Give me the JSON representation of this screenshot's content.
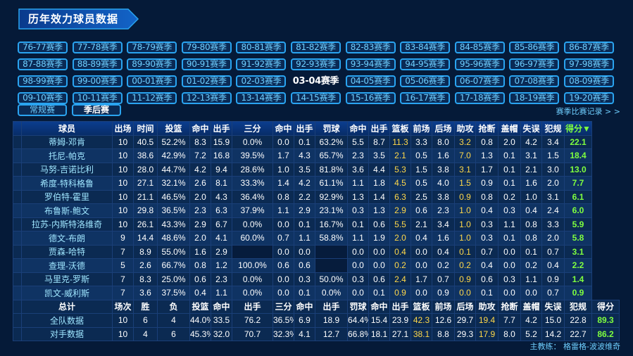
{
  "page_title": "历年效力球员数据",
  "seasons": [
    [
      "76-77赛季",
      "77-78赛季",
      "78-79赛季",
      "79-80赛季",
      "80-81赛季",
      "81-82赛季",
      "82-83赛季",
      "83-84赛季",
      "84-85赛季",
      "85-86赛季",
      "86-87赛季"
    ],
    [
      "87-88赛季",
      "88-89赛季",
      "89-90赛季",
      "90-91赛季",
      "91-92赛季",
      "92-93赛季",
      "93-94赛季",
      "94-95赛季",
      "95-96赛季",
      "96-97赛季",
      "97-98赛季"
    ],
    [
      "98-99赛季",
      "99-00赛季",
      "00-01赛季",
      "01-02赛季",
      "02-03赛季",
      "03-04赛季",
      "04-05赛季",
      "05-06赛季",
      "06-07赛季",
      "07-08赛季",
      "08-09赛季"
    ],
    [
      "09-10赛季",
      "10-11赛季",
      "11-12赛季",
      "12-13赛季",
      "13-14赛季",
      "14-15赛季",
      "15-16赛季",
      "16-17赛季",
      "17-18赛季",
      "18-19赛季",
      "19-20赛季"
    ]
  ],
  "active_season": "03-04赛季",
  "type_tabs": {
    "regular": "常规赛",
    "playoff": "季后赛"
  },
  "record_link": "赛季比赛记录 > >",
  "headers": [
    "球员",
    "出场",
    "时间",
    "投篮",
    "命中",
    "出手",
    "三分",
    "命中",
    "出手",
    "罚球",
    "命中",
    "出手",
    "篮板",
    "前场",
    "后场",
    "助攻",
    "抢断",
    "盖帽",
    "失误",
    "犯规",
    "得分▼"
  ],
  "players": [
    [
      "蒂姆-邓肯",
      "10",
      "40.5",
      "52.2%",
      "8.3",
      "15.9",
      "0.0%",
      "0.0",
      "0.1",
      "63.2%",
      "5.5",
      "8.7",
      "11.3",
      "3.3",
      "8.0",
      "3.2",
      "0.8",
      "2.0",
      "4.2",
      "3.4",
      "22.1"
    ],
    [
      "托尼-帕克",
      "10",
      "38.6",
      "42.9%",
      "7.2",
      "16.8",
      "39.5%",
      "1.7",
      "4.3",
      "65.7%",
      "2.3",
      "3.5",
      "2.1",
      "0.5",
      "1.6",
      "7.0",
      "1.3",
      "0.1",
      "3.1",
      "1.5",
      "18.4"
    ],
    [
      "马努-吉诺比利",
      "10",
      "28.0",
      "44.7%",
      "4.2",
      "9.4",
      "28.6%",
      "1.0",
      "3.5",
      "81.8%",
      "3.6",
      "4.4",
      "5.3",
      "1.5",
      "3.8",
      "3.1",
      "1.7",
      "0.1",
      "2.1",
      "3.0",
      "13.0"
    ],
    [
      "希度-特科格鲁",
      "10",
      "27.1",
      "32.1%",
      "2.6",
      "8.1",
      "33.3%",
      "1.4",
      "4.2",
      "61.1%",
      "1.1",
      "1.8",
      "4.5",
      "0.5",
      "4.0",
      "1.5",
      "0.9",
      "0.1",
      "1.6",
      "2.0",
      "7.7"
    ],
    [
      "罗伯特-霍里",
      "10",
      "21.1",
      "46.5%",
      "2.0",
      "4.3",
      "36.4%",
      "0.8",
      "2.2",
      "92.9%",
      "1.3",
      "1.4",
      "6.3",
      "2.5",
      "3.8",
      "0.9",
      "0.8",
      "0.2",
      "1.0",
      "3.1",
      "6.1"
    ],
    [
      "布鲁斯-鲍文",
      "10",
      "29.8",
      "36.5%",
      "2.3",
      "6.3",
      "37.9%",
      "1.1",
      "2.9",
      "23.1%",
      "0.3",
      "1.3",
      "2.9",
      "0.6",
      "2.3",
      "1.0",
      "0.4",
      "0.3",
      "0.4",
      "2.4",
      "6.0"
    ],
    [
      "拉苏-内斯特洛维奇",
      "10",
      "26.1",
      "43.3%",
      "2.9",
      "6.7",
      "0.0%",
      "0.0",
      "0.1",
      "16.7%",
      "0.1",
      "0.6",
      "5.5",
      "2.1",
      "3.4",
      "1.0",
      "0.3",
      "1.1",
      "0.8",
      "3.3",
      "5.9"
    ],
    [
      "德文-布朗",
      "9",
      "14.4",
      "48.6%",
      "2.0",
      "4.1",
      "60.0%",
      "0.7",
      "1.1",
      "58.8%",
      "1.1",
      "1.9",
      "2.0",
      "0.4",
      "1.6",
      "1.0",
      "0.3",
      "0.1",
      "0.8",
      "2.0",
      "5.8"
    ],
    [
      "贾森-哈特",
      "7",
      "8.9",
      "55.0%",
      "1.6",
      "2.9",
      "",
      "0.0",
      "0.0",
      "",
      "0.0",
      "0.0",
      "0.4",
      "0.0",
      "0.4",
      "0.1",
      "0.7",
      "0.0",
      "0.1",
      "0.7",
      "3.1"
    ],
    [
      "查理-沃德",
      "5",
      "2.6",
      "66.7%",
      "0.8",
      "1.2",
      "100.0%",
      "0.6",
      "0.6",
      "",
      "0.0",
      "0.0",
      "0.2",
      "0.0",
      "0.2",
      "0.2",
      "0.4",
      "0.0",
      "0.2",
      "0.4",
      "2.2"
    ],
    [
      "马里克-罗斯",
      "7",
      "8.3",
      "25.0%",
      "0.6",
      "2.3",
      "0.0%",
      "0.0",
      "0.3",
      "50.0%",
      "0.3",
      "0.6",
      "2.4",
      "1.7",
      "0.7",
      "0.9",
      "0.6",
      "0.3",
      "1.1",
      "0.9",
      "1.4"
    ],
    [
      "凯文-威利斯",
      "7",
      "3.6",
      "37.5%",
      "0.4",
      "1.1",
      "0.0%",
      "0.0",
      "0.1",
      "0.0%",
      "0.0",
      "0.1",
      "0.9",
      "0.0",
      "0.9",
      "0.0",
      "0.1",
      "0.0",
      "0.0",
      "0.7",
      "0.9"
    ]
  ],
  "totals_headers": [
    "总计",
    "场次",
    "胜",
    "负",
    "投篮",
    "命中",
    "出手",
    "三分",
    "命中",
    "出手",
    "罚球",
    "命中",
    "出手",
    "篮板",
    "前场",
    "后场",
    "助攻",
    "抢断",
    "盖帽",
    "失误",
    "犯规",
    "得分"
  ],
  "totals": [
    [
      "全队数据",
      "10",
      "6",
      "4",
      "44.0%",
      "33.5",
      "76.2",
      "36.5%",
      "6.9",
      "18.9",
      "64.4%",
      "15.4",
      "23.9",
      "42.3",
      "12.6",
      "29.7",
      "19.4",
      "7.7",
      "4.2",
      "15.0",
      "22.8",
      "89.3"
    ],
    [
      "对手数据",
      "10",
      "4",
      "6",
      "45.3%",
      "32.0",
      "70.7",
      "32.3%",
      "4.1",
      "12.7",
      "66.8%",
      "18.1",
      "27.1",
      "38.1",
      "8.8",
      "29.3",
      "17.9",
      "8.0",
      "5.2",
      "14.2",
      "22.7",
      "86.2"
    ]
  ],
  "footer": "主教练：  格雷格-波波维奇"
}
